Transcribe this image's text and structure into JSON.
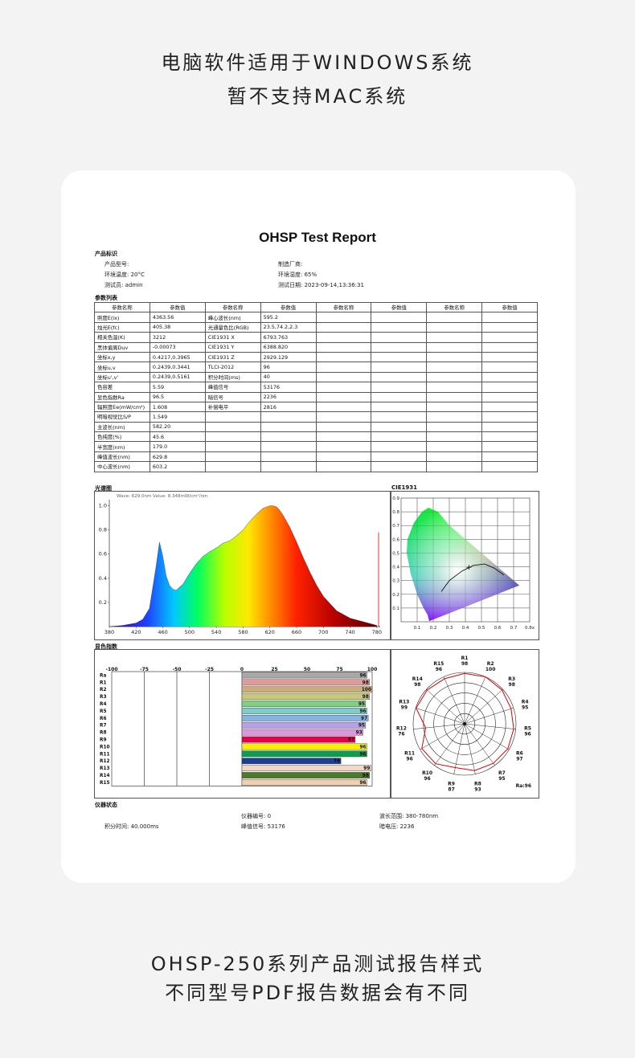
{
  "header": {
    "line1": "电脑软件适用于WINDOWS系统",
    "line2": "暂不支持MAC系统"
  },
  "report": {
    "title": "OHSP Test Report",
    "product_section": "产品标识",
    "product_model": "产品型号:",
    "manufacturer": "制造厂商:",
    "temperature": "环境温度: 20°C",
    "humidity": "环境湿度: 65%",
    "tester": "测试员: admin",
    "test_date": "测试日期: 2023-09-14,13:36:31",
    "params_section": "参数列表",
    "header_name": "参数名称",
    "header_value": "参数值",
    "table_rows": [
      [
        "照度E(lx)",
        "4363.56",
        "峰心波长(nm)",
        "595.2"
      ],
      [
        "烛光E(fc)",
        "405.38",
        "光通量色比(RGB)",
        "23.5,74.2,2.3"
      ],
      [
        "相关色温(K)",
        "3212",
        "CIE1931 X",
        "6793.763"
      ],
      [
        "黑体偏离Duv",
        "-0.00073",
        "CIE1931 Y",
        "6388.820"
      ],
      [
        "坐标x,y",
        "0.4217,0.3965",
        "CIE1931 Z",
        "2929.129"
      ],
      [
        "坐标u,v",
        "0.2439,0.3441",
        "TLCI-2012",
        "96"
      ],
      [
        "坐标u',v'",
        "0.2439,0.5161",
        "积分时间(ms)",
        "40"
      ],
      [
        "色容差",
        "5.59",
        "峰值信号",
        "53176"
      ],
      [
        "显色指数Ra",
        "96.5",
        "暗信号",
        "2236"
      ],
      [
        "辐照度Ee(mW/cm²)",
        "1.608",
        "补偿电平",
        "2816"
      ],
      [
        "明暗视觉比S/P",
        "1.549",
        "",
        ""
      ],
      [
        "主波长(nm)",
        "582.20",
        "",
        ""
      ],
      [
        "色纯度(%)",
        "45.6",
        "",
        ""
      ],
      [
        "半宽度(nm)",
        "179.0",
        "",
        ""
      ],
      [
        "峰值波长(nm)",
        "629.8",
        "",
        ""
      ],
      [
        "中心波长(nm)",
        "603.2",
        "",
        ""
      ]
    ],
    "spectrum_section": "光谱图",
    "cie_section": "CIE1931",
    "cri_section": "显色指数",
    "status_section": "仪器状态",
    "instrument_no": "仪器编号: 0",
    "wavelength_range": "波长范围: 380-780nm",
    "integration_time": "积分时间: 40.000ms",
    "peak_signal": "峰值信号: 53176",
    "dark_voltage": "暗电压: 2236"
  },
  "chart_data": [
    {
      "type": "area",
      "annotation": "Wave: 629.0nm Value: 8.348mW/cm²/nm",
      "x_ticks": [
        380,
        420,
        460,
        500,
        540,
        580,
        620,
        660,
        700,
        740,
        780
      ],
      "y_ticks": [
        0.2,
        0.4,
        0.6,
        0.8,
        1.0
      ],
      "xlim": [
        380,
        785
      ],
      "ylim": [
        0,
        1.05
      ],
      "x": [
        380,
        400,
        420,
        430,
        440,
        450,
        455,
        460,
        465,
        470,
        475,
        480,
        490,
        500,
        510,
        520,
        530,
        540,
        550,
        560,
        570,
        580,
        590,
        600,
        610,
        620,
        625,
        630,
        635,
        640,
        650,
        660,
        670,
        680,
        690,
        700,
        720,
        740,
        760,
        780
      ],
      "values": [
        0.0,
        0.01,
        0.03,
        0.06,
        0.15,
        0.5,
        0.7,
        0.58,
        0.42,
        0.34,
        0.31,
        0.3,
        0.35,
        0.44,
        0.52,
        0.58,
        0.62,
        0.65,
        0.69,
        0.71,
        0.75,
        0.8,
        0.87,
        0.93,
        0.98,
        1.0,
        1.0,
        0.99,
        0.96,
        0.92,
        0.82,
        0.7,
        0.57,
        0.45,
        0.34,
        0.25,
        0.13,
        0.07,
        0.04,
        0.01
      ]
    },
    {
      "type": "scatter",
      "name": "CIE1931",
      "x_ticks": [
        0.1,
        0.2,
        0.3,
        0.4,
        0.5,
        0.6,
        0.7,
        "0.8x"
      ],
      "y_ticks": [
        0.1,
        0.2,
        0.3,
        0.4,
        0.5,
        0.6,
        0.7,
        0.8,
        0.9
      ],
      "point": {
        "x": 0.4217,
        "y": 0.3965
      }
    },
    {
      "type": "bar",
      "x_ticks": [
        -100,
        -75,
        -50,
        -25,
        0,
        25,
        50,
        75,
        100
      ],
      "categories": [
        "Ra",
        "R1",
        "R2",
        "R3",
        "R4",
        "R5",
        "R6",
        "R7",
        "R8",
        "R9",
        "R10",
        "R11",
        "R12",
        "R13",
        "R14",
        "R15"
      ],
      "values": [
        96,
        98,
        100,
        98,
        95,
        96,
        97,
        95,
        93,
        87,
        96,
        96,
        76,
        99,
        98,
        96
      ],
      "colors": [
        "#a8a8a8",
        "#e39a9a",
        "#c9ae7a",
        "#c6c97a",
        "#7fd07f",
        "#7ecdcd",
        "#86b4e6",
        "#b7a0e6",
        "#dc98dc",
        "#e6004c",
        "#f8f000",
        "#0b9e4f",
        "#1c3f94",
        "#f1d7c5",
        "#4b7a2a",
        "#f2cfae"
      ]
    },
    {
      "type": "radar",
      "labels": [
        "R1",
        "R2",
        "R3",
        "R4",
        "R5",
        "R6",
        "R7",
        "R8",
        "R9",
        "R10",
        "R11",
        "R12",
        "R13",
        "R14",
        "R15"
      ],
      "values": [
        98,
        100,
        98,
        95,
        96,
        97,
        95,
        93,
        87,
        96,
        96,
        76,
        99,
        98,
        96
      ],
      "ra_label": "Ra:96"
    }
  ],
  "footer": {
    "line1": "OHSP-250系列产品测试报告样式",
    "line2": "不同型号PDF报告数据会有不同"
  }
}
